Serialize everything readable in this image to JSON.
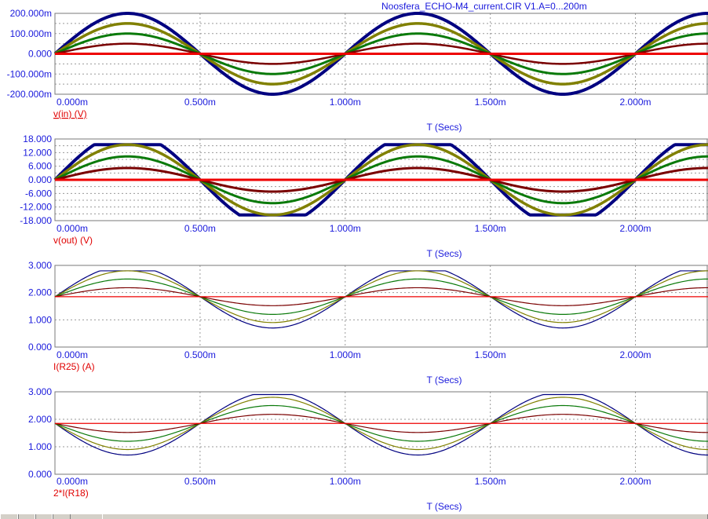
{
  "title": "Noosfera_ECHO-M4_current.CIR V1.A=0...200m",
  "x_ticks": [
    "0.000m",
    "0.500m",
    "1.000m",
    "1.500m",
    "2.000m"
  ],
  "x_label": "T (Secs)",
  "colors": {
    "trace_0": "#ee0000",
    "trace_50": "#7a0000",
    "trace_100": "#0a7a0a",
    "trace_150": "#808000",
    "trace_200": "#000080",
    "tick_text": "#1a1adc",
    "ylabel_text": "#e00000"
  },
  "chart_data": [
    {
      "type": "line",
      "ylabel": "v(in) (V)",
      "xlabel": "T (Secs)",
      "xlim": [
        0,
        0.00225
      ],
      "ylim": [
        -0.2,
        0.2
      ],
      "y_ticks": [
        "200.000m",
        "100.000m",
        "0.000",
        "-100.000m",
        "-200.000m"
      ],
      "x_ticks": [
        "0.000m",
        "0.500m",
        "1.000m",
        "1.500m",
        "2.000m"
      ],
      "grid": true,
      "signal": "sine",
      "frequency_hz": 1000,
      "series": [
        {
          "amplitude": 0.0,
          "offset": 0,
          "color": "#ee0000"
        },
        {
          "amplitude": 0.05,
          "offset": 0,
          "color": "#7a0000"
        },
        {
          "amplitude": 0.1,
          "offset": 0,
          "color": "#0a7a0a"
        },
        {
          "amplitude": 0.15,
          "offset": 0,
          "color": "#808000"
        },
        {
          "amplitude": 0.2,
          "offset": 0,
          "color": "#000080"
        }
      ]
    },
    {
      "type": "line",
      "ylabel": "v(out) (V)",
      "xlabel": "T (Secs)",
      "xlim": [
        0,
        0.00225
      ],
      "ylim": [
        -18,
        18
      ],
      "y_ticks": [
        "18.000",
        "12.000",
        "6.000",
        "0.000",
        "-6.000",
        "-12.000",
        "-18.000"
      ],
      "x_ticks": [
        "0.000m",
        "0.500m",
        "1.000m",
        "1.500m",
        "2.000m"
      ],
      "grid": true,
      "signal": "sine-clipped",
      "frequency_hz": 1000,
      "clip": 15.5,
      "series": [
        {
          "amplitude": 0.0,
          "offset": 0,
          "color": "#ee0000"
        },
        {
          "amplitude": 5.2,
          "offset": 0,
          "color": "#7a0000"
        },
        {
          "amplitude": 10.3,
          "offset": 0,
          "color": "#0a7a0a"
        },
        {
          "amplitude": 15.5,
          "offset": 0,
          "color": "#808000"
        },
        {
          "amplitude": 20.6,
          "offset": 0,
          "color": "#000080"
        }
      ]
    },
    {
      "type": "line",
      "ylabel": "I(R25) (A)",
      "xlabel": "T (Secs)",
      "xlim": [
        0,
        0.00225
      ],
      "ylim": [
        0,
        3
      ],
      "y_ticks": [
        "3.000",
        "2.000",
        "1.000",
        "0.000"
      ],
      "x_ticks": [
        "0.000m",
        "0.500m",
        "1.000m",
        "1.500m",
        "2.000m"
      ],
      "grid": true,
      "signal": "sine-clipped",
      "frequency_hz": 1000,
      "clip_high": 2.8,
      "series": [
        {
          "amplitude": 0.0,
          "offset": 1.85,
          "color": "#ee0000"
        },
        {
          "amplitude": 0.33,
          "offset": 1.85,
          "color": "#7a0000"
        },
        {
          "amplitude": 0.65,
          "offset": 1.85,
          "color": "#0a7a0a"
        },
        {
          "amplitude": 0.95,
          "offset": 1.85,
          "color": "#808000"
        },
        {
          "amplitude": 1.15,
          "offset": 1.85,
          "color": "#000080"
        }
      ]
    },
    {
      "type": "line",
      "ylabel": "2*I(R18)",
      "xlabel": "T (Secs)",
      "xlim": [
        0,
        0.00225
      ],
      "ylim": [
        0,
        3
      ],
      "y_ticks": [
        "3.000",
        "2.000",
        "1.000",
        "0.000"
      ],
      "x_ticks": [
        "0.000m",
        "0.500m",
        "1.000m",
        "1.500m",
        "2.000m"
      ],
      "grid": true,
      "signal": "sine-clipped",
      "frequency_hz": 1000,
      "clip_high": 2.9,
      "series": [
        {
          "amplitude": 0.0,
          "offset": 1.85,
          "color": "#ee0000"
        },
        {
          "amplitude": -0.33,
          "offset": 1.85,
          "color": "#7a0000"
        },
        {
          "amplitude": -0.65,
          "offset": 1.85,
          "color": "#0a7a0a"
        },
        {
          "amplitude": -0.95,
          "offset": 1.85,
          "color": "#808000"
        },
        {
          "amplitude": -1.15,
          "offset": 1.85,
          "color": "#000080"
        }
      ]
    }
  ]
}
